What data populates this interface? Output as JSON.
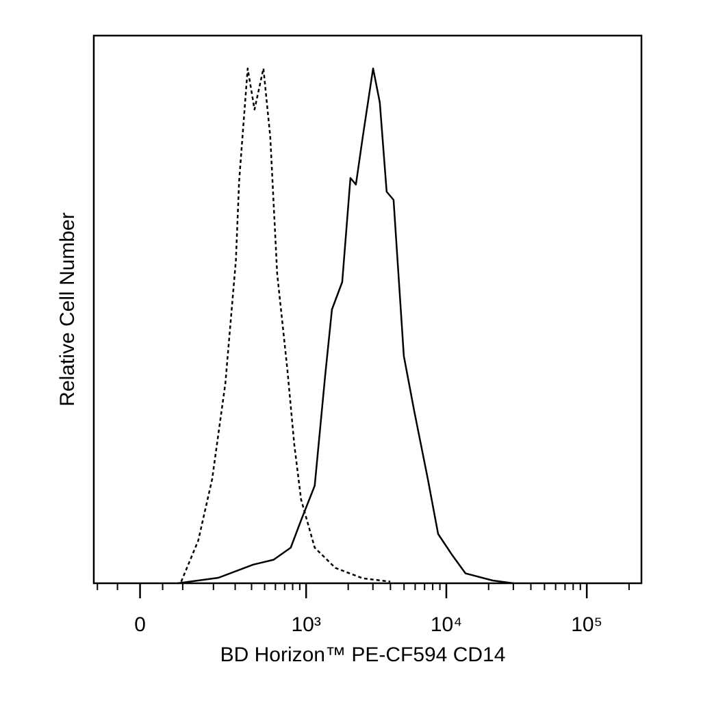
{
  "chart_data": {
    "type": "histogram-overlay",
    "xlabel": "BD Horizon™ PE-CF594 CD14",
    "ylabel": "Relative Cell Number",
    "xscale": "asinh",
    "x_linear_width": 132,
    "xlim": [
      -110,
      245000
    ],
    "ylim": [
      0,
      100
    ],
    "xticks": [
      0,
      {
        "value": 1000,
        "label": "10³"
      },
      {
        "value": 10000,
        "label": "10⁴"
      },
      {
        "value": 100000,
        "label": "10⁵"
      }
    ],
    "xminorticks": [
      -100,
      -50,
      50,
      100,
      200,
      300,
      400,
      500,
      600,
      700,
      800,
      900,
      2000,
      3000,
      4000,
      5000,
      6000,
      7000,
      8000,
      9000,
      20000,
      30000,
      40000,
      50000,
      60000,
      70000,
      80000,
      90000,
      200000
    ],
    "series": [
      {
        "color": "#000000",
        "dashed": true,
        "x": [
          96,
          146,
          195,
          251,
          304,
          322,
          374,
          421,
          490,
          550,
          618,
          733,
          822,
          920,
          1152,
          1620,
          2540,
          3990
        ],
        "values": [
          0.3,
          7.8,
          19,
          36.5,
          59,
          73.4,
          94,
          86.5,
          94,
          81.5,
          56.5,
          39,
          25.3,
          15.3,
          6.5,
          2.8,
          0.9,
          0.3
        ]
      },
      {
        "color": "#000000",
        "dashed": false,
        "x": [
          87,
          220,
          411,
          582,
          775,
          920,
          1152,
          1368,
          1530,
          1812,
          2075,
          2270,
          2540,
          3010,
          3360,
          3760,
          4210,
          4980,
          5900,
          7390,
          8740,
          10900,
          13700,
          21400,
          30000
        ],
        "values": [
          0,
          1,
          3.4,
          4.3,
          6.5,
          11.5,
          17.8,
          37.8,
          50,
          55,
          74,
          72.8,
          81.5,
          94,
          87.8,
          71.5,
          70,
          41.5,
          31.5,
          19,
          9,
          5.3,
          1.8,
          0.5,
          0
        ]
      }
    ]
  }
}
